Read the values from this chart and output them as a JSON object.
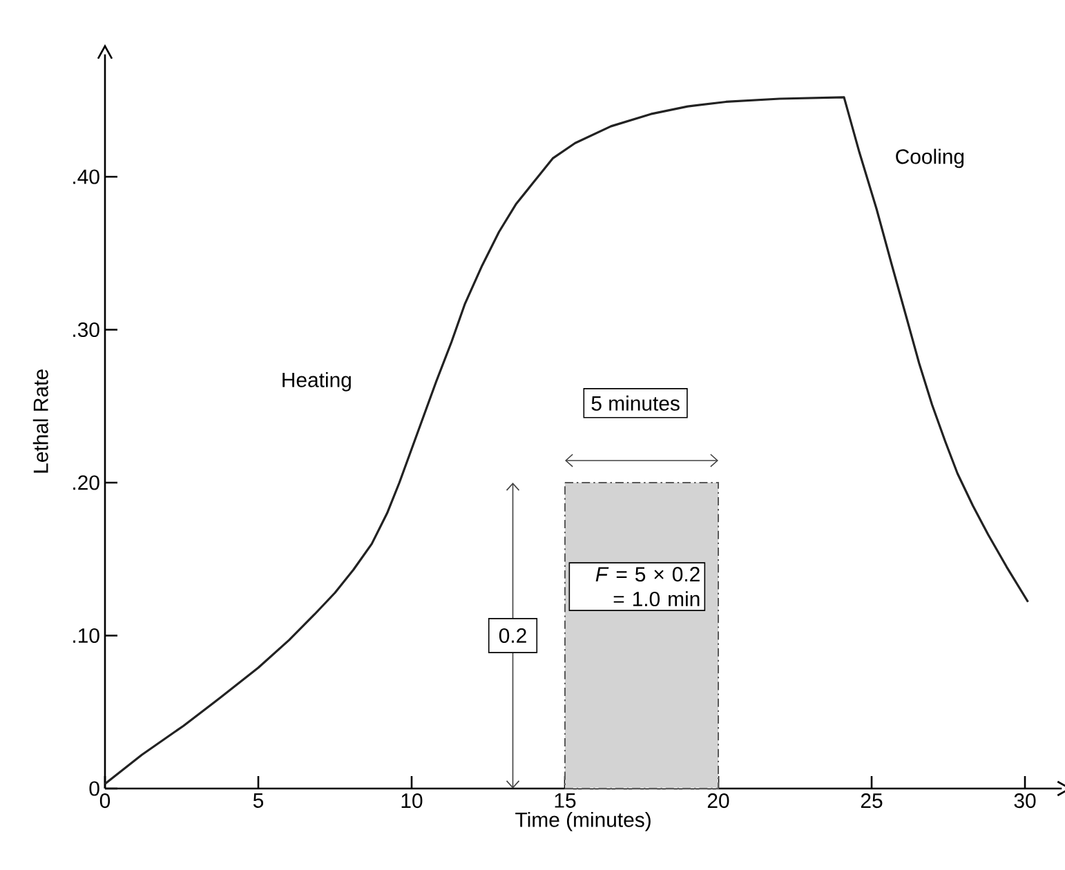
{
  "chart_data": {
    "type": "line",
    "xlabel": "Time (minutes)",
    "ylabel": "Lethal Rate",
    "xlim": [
      0,
      31.2
    ],
    "ylim": [
      0,
      0.48
    ],
    "xticks": [
      0,
      5,
      10,
      15,
      20,
      25,
      30
    ],
    "yticks": [
      0,
      {
        "value": 0.1,
        "label": ".10"
      },
      {
        "value": 0.2,
        "label": ".20"
      },
      {
        "value": 0.3,
        "label": ".30"
      },
      {
        "value": 0.4,
        "label": ".40"
      }
    ],
    "grid": false,
    "marker": "none",
    "series": [
      {
        "type": "area",
        "color": "#d3d3d3",
        "line_style": "dashed",
        "x": [
          15,
          20
        ],
        "values": [
          0.2,
          0.2
        ]
      },
      {
        "type": "line",
        "color": "#222222",
        "line_style": "solid",
        "x": [
          0,
          1.2,
          2.56,
          3.8,
          5,
          6,
          6.84,
          7.5,
          8.1,
          8.7,
          9.2,
          9.6,
          10,
          10.4,
          10.8,
          11.3,
          11.74,
          12.3,
          12.85,
          13.4,
          13.96,
          14.6,
          15.33,
          16.5,
          17.8,
          19,
          20.25,
          22,
          24.1,
          24.6,
          25.16,
          25.65,
          26.15,
          26.55,
          26.97,
          27.4,
          27.8,
          28.3,
          28.8,
          29.4,
          30.1
        ],
        "values": [
          0.003,
          0.022,
          0.041,
          0.06,
          0.079,
          0.097,
          0.114,
          0.128,
          0.143,
          0.16,
          0.18,
          0.2,
          0.222,
          0.244,
          0.266,
          0.292,
          0.317,
          0.342,
          0.364,
          0.382,
          0.396,
          0.412,
          0.422,
          0.433,
          0.441,
          0.446,
          0.449,
          0.451,
          0.452,
          0.416,
          0.379,
          0.343,
          0.307,
          0.278,
          0.251,
          0.227,
          0.206,
          0.185,
          0.166,
          0.145,
          0.122
        ]
      }
    ],
    "annotations": [
      "Heating",
      "Cooling",
      "5 minutes",
      {
        "text": "0.2",
        "x": 13.3,
        "y": 0.1
      },
      "*F* = 5 × 0.2 = 1.0 min"
    ]
  }
}
